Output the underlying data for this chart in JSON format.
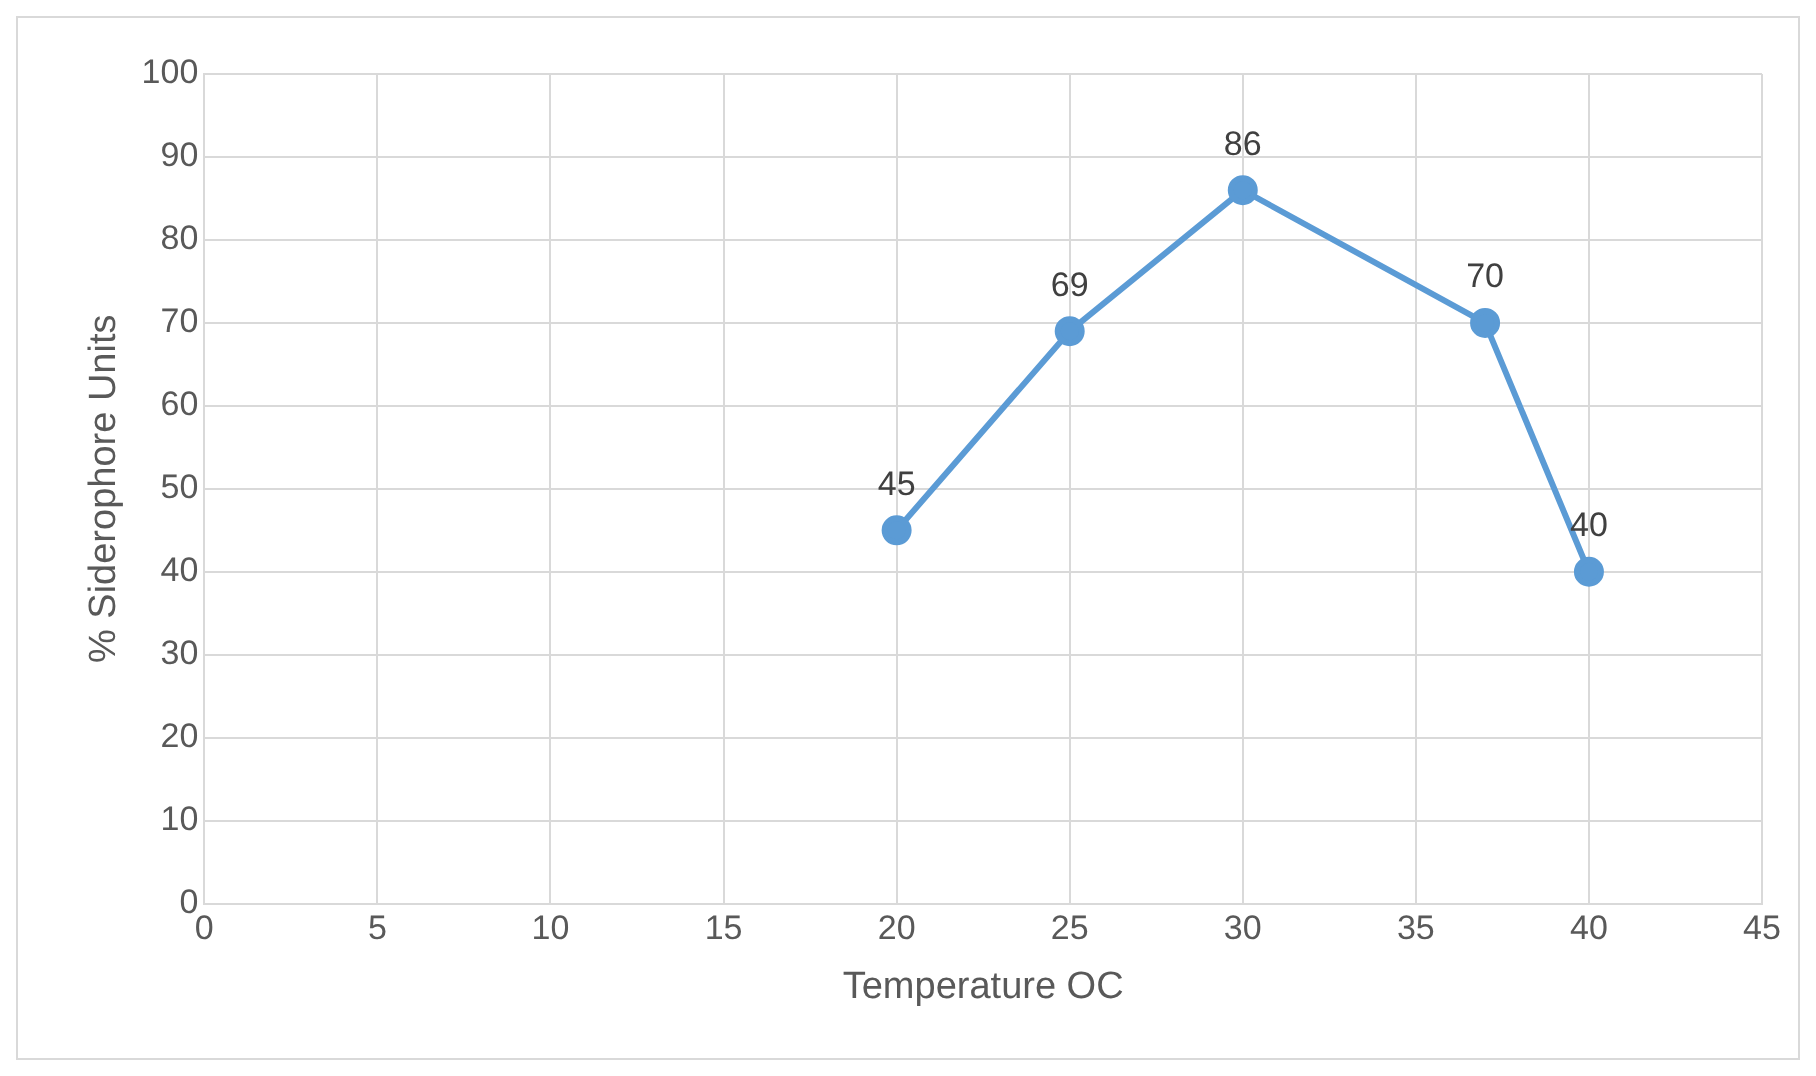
{
  "chart_data": {
    "type": "line",
    "xlabel": "Temperature OC",
    "ylabel": "% Siderophore Units",
    "x": [
      20,
      25,
      30,
      37,
      40
    ],
    "series": [
      {
        "color": "#5b9bd5",
        "values": [
          45,
          69,
          86,
          70,
          40
        ]
      }
    ],
    "xlim": [
      0,
      45
    ],
    "xticks": [
      0,
      5,
      10,
      15,
      20,
      25,
      30,
      35,
      40,
      45
    ],
    "ylim": [
      0,
      100
    ],
    "yticks": [
      0,
      10,
      20,
      30,
      40,
      50,
      60,
      70,
      80,
      90,
      100
    ],
    "grid": true,
    "marker": "circle",
    "line_style": "solid",
    "data_labels": true,
    "legend": false
  }
}
